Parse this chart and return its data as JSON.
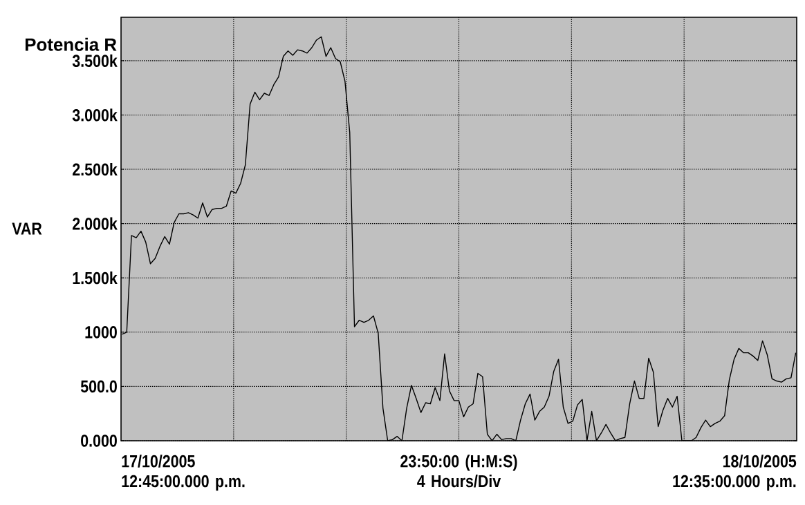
{
  "chart_data": {
    "type": "line",
    "title": "Potencia R",
    "ylabel": "VAR",
    "xlabel": "23:50:00 (H:M:S) 4 Hours/Div",
    "annotations": [
      "17/10/2005 12:45:00.000 p.m.",
      "18/10/2005 12:35:00.000 p.m."
    ],
    "categories": [
      null,
      null,
      null,
      null,
      null,
      null,
      null,
      null,
      null,
      null,
      null,
      null,
      null,
      null,
      null,
      null,
      null,
      null,
      null,
      null,
      null,
      null,
      null,
      null,
      null,
      null,
      null,
      null,
      null,
      null,
      null,
      null,
      null,
      null,
      null,
      null,
      null,
      null,
      null,
      null,
      null,
      null,
      null,
      null,
      null,
      null,
      null,
      null,
      null,
      null,
      null,
      null,
      null,
      null,
      null,
      null,
      null,
      null,
      null,
      null,
      null,
      null,
      null,
      null,
      null,
      null,
      null,
      null,
      null,
      null,
      null,
      null,
      null,
      null,
      null,
      null,
      null,
      null,
      null,
      null,
      null,
      null,
      null,
      null,
      null,
      null,
      null,
      null,
      null,
      null,
      null,
      null,
      null,
      null,
      null,
      null,
      null,
      null,
      null,
      null,
      null,
      null,
      null,
      null,
      null,
      null,
      null,
      null,
      null,
      null,
      null,
      null,
      null,
      null,
      null,
      null,
      null,
      null,
      null,
      null,
      null,
      null,
      null,
      null,
      null,
      null,
      null,
      null,
      null,
      null,
      null,
      null,
      null,
      null,
      null,
      null,
      null,
      null,
      null,
      null,
      null,
      null,
      null
    ],
    "values": [
      980,
      1000,
      1890,
      1870,
      1930,
      1830,
      1630,
      1680,
      1790,
      1880,
      1810,
      2010,
      2090,
      2090,
      2100,
      2080,
      2050,
      2190,
      2060,
      2130,
      2140,
      2140,
      2160,
      2300,
      2280,
      2370,
      2540,
      3100,
      3210,
      3140,
      3200,
      3180,
      3280,
      3350,
      3540,
      3590,
      3550,
      3600,
      3590,
      3570,
      3620,
      3690,
      3720,
      3540,
      3620,
      3520,
      3490,
      3310,
      2840,
      1050,
      1110,
      1090,
      1110,
      1150,
      990,
      300,
      0,
      10,
      40,
      0,
      300,
      510,
      390,
      260,
      350,
      340,
      490,
      370,
      800,
      460,
      370,
      370,
      220,
      310,
      340,
      620,
      590,
      60,
      0,
      60,
      10,
      20,
      20,
      0,
      190,
      340,
      430,
      190,
      270,
      310,
      410,
      640,
      750,
      310,
      160,
      180,
      330,
      380,
      0,
      270,
      0,
      70,
      150,
      70,
      0,
      20,
      30,
      340,
      550,
      390,
      390,
      760,
      630,
      130,
      280,
      390,
      310,
      410,
      0,
      0,
      0,
      30,
      120,
      190,
      130,
      160,
      180,
      230,
      560,
      750,
      850,
      810,
      810,
      780,
      740,
      920,
      790,
      570,
      550,
      540,
      570,
      580,
      810
    ],
    "color": "#000000",
    "ylim": [
      0,
      3900
    ],
    "yticks": [
      {
        "value": 0,
        "label": "0.000"
      },
      {
        "value": 500,
        "label": "500.0"
      },
      {
        "value": 1000,
        "label": "1000"
      },
      {
        "value": 1500,
        "label": "1.500k"
      },
      {
        "value": 2000,
        "label": "2.000k"
      },
      {
        "value": 2500,
        "label": "2.500k"
      },
      {
        "value": 3000,
        "label": "3.000k"
      },
      {
        "value": 3500,
        "label": "3.500k"
      }
    ],
    "grid": true
  }
}
